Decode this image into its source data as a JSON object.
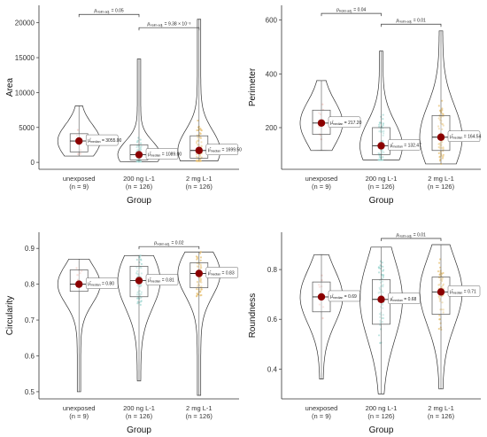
{
  "chart_data": [
    {
      "type": "violin",
      "xlabel": "Group",
      "ylabel": "Area",
      "ylim": [
        -1000,
        22500
      ],
      "yticks": [
        0,
        5000,
        10000,
        15000,
        20000
      ],
      "yticklabels": [
        "0",
        "5000",
        "10000",
        "15000",
        "20000"
      ],
      "categories": [
        {
          "line1": "unexposed",
          "line2": "(n = 9)"
        },
        {
          "line1": "200 ng L-1",
          "line2": "(n = 126)"
        },
        {
          "line1": "2 mg L-1",
          "line2": "(n = 126)"
        }
      ],
      "groups": [
        {
          "median": 3055.0,
          "q1": 1500,
          "q3": 4100,
          "min": 900,
          "max": 8100,
          "label": "= 3055.00"
        },
        {
          "median": 1089.0,
          "q1": 350,
          "q3": 2500,
          "min": 100,
          "max": 14800,
          "label": "= 1089.00"
        },
        {
          "median": 1699.5,
          "q1": 600,
          "q3": 3800,
          "min": 200,
          "max": 20500,
          "label": "= 1699.50"
        }
      ],
      "comparisons": [
        {
          "from": 0,
          "to": 1,
          "y": 21200,
          "p_label": "= 0.05"
        },
        {
          "from": 1,
          "to": 2,
          "y": 19300,
          "p_label": "= 9.38 × 10⁻³"
        }
      ]
    },
    {
      "type": "violin",
      "xlabel": "Group",
      "ylabel": "Perimeter",
      "ylim": [
        45,
        655
      ],
      "yticks": [
        200,
        400,
        600
      ],
      "yticklabels": [
        "200",
        "400",
        "600"
      ],
      "categories": [
        {
          "line1": "unexposed",
          "line2": "(n = 9)"
        },
        {
          "line1": "200 ng L-1",
          "line2": "(n = 126)"
        },
        {
          "line1": "2 mg L-1",
          "line2": "(n = 126)"
        }
      ],
      "groups": [
        {
          "median": 217.2,
          "q1": 175,
          "q3": 265,
          "min": 115,
          "max": 375,
          "label": "= 217.20"
        },
        {
          "median": 132.47,
          "q1": 100,
          "q3": 200,
          "min": 80,
          "max": 485,
          "label": "= 132.47"
        },
        {
          "median": 164.54,
          "q1": 115,
          "q3": 245,
          "min": 65,
          "max": 560,
          "label": "= 164.54"
        }
      ],
      "comparisons": [
        {
          "from": 0,
          "to": 1,
          "y": 625,
          "p_label": "= 0.04"
        },
        {
          "from": 1,
          "to": 2,
          "y": 585,
          "p_label": "= 0.01"
        }
      ]
    },
    {
      "type": "violin",
      "xlabel": "Group",
      "ylabel": "Circularity",
      "ylim": [
        0.48,
        0.945
      ],
      "yticks": [
        0.5,
        0.6,
        0.7,
        0.8,
        0.9
      ],
      "yticklabels": [
        "0.5",
        "0.6",
        "0.7",
        "0.8",
        "0.9"
      ],
      "categories": [
        {
          "line1": "unexposed",
          "line2": "(n = 9)"
        },
        {
          "line1": "200 ng L-1",
          "line2": "(n = 126)"
        },
        {
          "line1": "2 mg L-1",
          "line2": "(n = 126)"
        }
      ],
      "groups": [
        {
          "median": 0.8,
          "q1": 0.78,
          "q3": 0.84,
          "min": 0.5,
          "max": 0.87,
          "label": "= 0.80"
        },
        {
          "median": 0.81,
          "q1": 0.765,
          "q3": 0.85,
          "min": 0.53,
          "max": 0.88,
          "label": "= 0.81"
        },
        {
          "median": 0.83,
          "q1": 0.79,
          "q3": 0.86,
          "min": 0.49,
          "max": 0.89,
          "label": "= 0.83"
        }
      ],
      "comparisons": [
        {
          "from": 1,
          "to": 2,
          "y": 0.905,
          "p_label": "= 0.02"
        }
      ]
    },
    {
      "type": "violin",
      "xlabel": "Group",
      "ylabel": "Roundness",
      "ylim": [
        0.28,
        0.95
      ],
      "yticks": [
        0.4,
        0.6,
        0.8
      ],
      "yticklabels": [
        "0.4",
        "0.6",
        "0.8"
      ],
      "categories": [
        {
          "line1": "unexposed",
          "line2": "(n = 9)"
        },
        {
          "line1": "200 ng L-1",
          "line2": "(n = 126)"
        },
        {
          "line1": "2 mg L-1",
          "line2": "(n = 126)"
        }
      ],
      "groups": [
        {
          "median": 0.69,
          "q1": 0.63,
          "q3": 0.75,
          "min": 0.36,
          "max": 0.86,
          "label": "= 0.69"
        },
        {
          "median": 0.68,
          "q1": 0.58,
          "q3": 0.76,
          "min": 0.3,
          "max": 0.89,
          "label": "= 0.68"
        },
        {
          "median": 0.71,
          "q1": 0.62,
          "q3": 0.77,
          "min": 0.32,
          "max": 0.9,
          "label": "= 0.71"
        }
      ],
      "comparisons": [
        {
          "from": 1,
          "to": 2,
          "y": 0.925,
          "p_label": "= 0.01"
        }
      ]
    }
  ],
  "labels": {
    "p_symbol": "p",
    "p_subscript": "Holm-adj.",
    "mu_symbol": "μ̂",
    "mu_subscript": "median"
  },
  "colors": {
    "median_point": "#8b0000",
    "violin_stroke": "#333333",
    "box_stroke": "#555555",
    "point_unexposed": "#f6c8c0",
    "point_200": "#9fd7d2",
    "point_2mg": "#e8c070"
  }
}
